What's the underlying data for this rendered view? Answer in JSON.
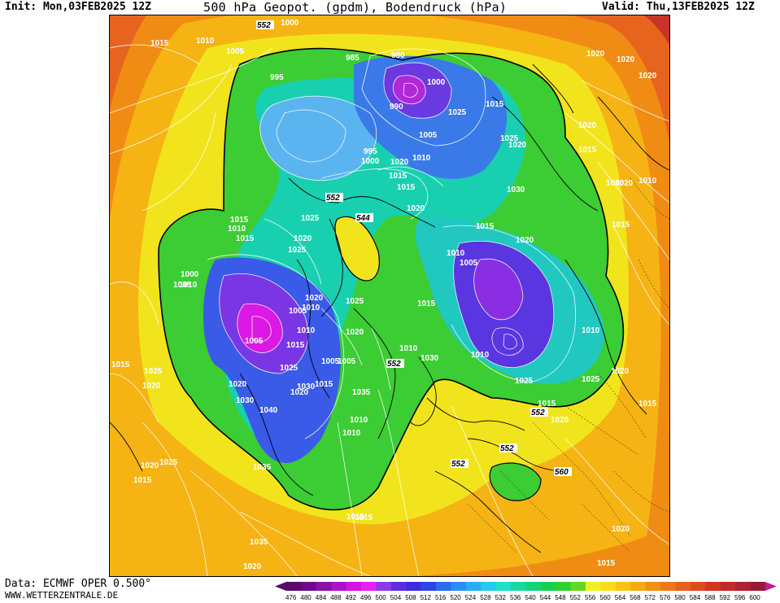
{
  "header": {
    "init": "Init: Mon,03FEB2025 12Z",
    "title": "500 hPa Geopot. (gpdm), Bodendruck (hPa)",
    "valid": "Valid: Thu,13FEB2025 12Z"
  },
  "footer": {
    "data_source": "Data: ECMWF OPER 0.500°",
    "website": "WWW.WETTERZENTRALE.DE"
  },
  "legend": {
    "values": [
      "476",
      "480",
      "484",
      "488",
      "492",
      "496",
      "500",
      "504",
      "508",
      "512",
      "516",
      "520",
      "524",
      "528",
      "532",
      "536",
      "540",
      "544",
      "548",
      "552",
      "556",
      "560",
      "564",
      "568",
      "572",
      "576",
      "580",
      "584",
      "588",
      "592",
      "596",
      "600"
    ],
    "colors": [
      "#5a0a68",
      "#6e0a8a",
      "#8a10a8",
      "#b010c8",
      "#d414e0",
      "#e820f0",
      "#8c3ae8",
      "#5a2ee0",
      "#3a2cdc",
      "#2a46e8",
      "#2a6af0",
      "#2a8cf5",
      "#28aef5",
      "#22ccea",
      "#1ce0c8",
      "#18d8a0",
      "#14d27a",
      "#18d050",
      "#30d030",
      "#64d820",
      "#f0f020",
      "#f8dc18",
      "#f8c414",
      "#f5aa12",
      "#f29012",
      "#ee7818",
      "#e8601c",
      "#e04a20",
      "#d43420",
      "#c42828",
      "#b02030",
      "#961c3a"
    ],
    "arrow_left_color": "#5a0a68",
    "arrow_right_color": "#c0208a"
  },
  "map": {
    "isobar_labels": [
      {
        "t": "1015"
      },
      {
        "t": "1010"
      },
      {
        "t": "1005"
      },
      {
        "t": "995"
      },
      {
        "t": "1000"
      },
      {
        "t": "985"
      },
      {
        "t": "980"
      },
      {
        "t": "990"
      },
      {
        "t": "1000"
      },
      {
        "t": "995"
      },
      {
        "t": "1025"
      },
      {
        "t": "1020"
      },
      {
        "t": "1015"
      },
      {
        "t": "1015"
      },
      {
        "t": "1025"
      },
      {
        "t": "1020"
      },
      {
        "t": "1005"
      },
      {
        "t": "1010"
      },
      {
        "t": "1020"
      },
      {
        "t": "1015"
      },
      {
        "t": "1005"
      },
      {
        "t": "1000"
      },
      {
        "t": "1010"
      },
      {
        "t": "1020"
      },
      {
        "t": "1025"
      },
      {
        "t": "1015"
      },
      {
        "t": "1020"
      },
      {
        "t": "1015"
      },
      {
        "t": "1010"
      },
      {
        "t": "1005"
      },
      {
        "t": "1000"
      },
      {
        "t": "1015"
      },
      {
        "t": "1020"
      },
      {
        "t": "1005"
      },
      {
        "t": "1010"
      },
      {
        "t": "1025"
      },
      {
        "t": "1020"
      },
      {
        "t": "1030"
      },
      {
        "t": "1015"
      },
      {
        "t": "1020"
      },
      {
        "t": "1010"
      },
      {
        "t": "1005"
      },
      {
        "t": "1015"
      },
      {
        "t": "1010"
      },
      {
        "t": "1010"
      },
      {
        "t": "1030"
      },
      {
        "t": "1025"
      },
      {
        "t": "1010"
      },
      {
        "t": "1020"
      },
      {
        "t": "1015"
      },
      {
        "t": "1025"
      },
      {
        "t": "1020"
      },
      {
        "t": "1015"
      },
      {
        "t": "1035"
      },
      {
        "t": "1030"
      },
      {
        "t": "1015"
      },
      {
        "t": "1020"
      },
      {
        "t": "1025"
      },
      {
        "t": "1040"
      },
      {
        "t": "1035"
      },
      {
        "t": "1015"
      },
      {
        "t": "1005"
      },
      {
        "t": "1010"
      },
      {
        "t": "1030"
      },
      {
        "t": "1015"
      },
      {
        "t": "1010"
      },
      {
        "t": "1020"
      },
      {
        "t": "1025"
      },
      {
        "t": "1010"
      },
      {
        "t": "1005"
      },
      {
        "t": "1020"
      },
      {
        "t": "1025"
      },
      {
        "t": "1035"
      },
      {
        "t": "1015"
      },
      {
        "t": "1020"
      },
      {
        "t": "1020"
      },
      {
        "t": "1020"
      },
      {
        "t": "1015"
      },
      {
        "t": "1020"
      },
      {
        "t": "1015"
      },
      {
        "t": "1025"
      },
      {
        "t": "1020"
      },
      {
        "t": "1015"
      },
      {
        "t": "1020"
      },
      {
        "t": "1015"
      },
      {
        "t": "1020"
      },
      {
        "t": "1000"
      },
      {
        "t": "1010"
      }
    ],
    "geopot_labels": [
      {
        "t": "552"
      },
      {
        "t": "552"
      },
      {
        "t": "552"
      },
      {
        "t": "544"
      },
      {
        "t": "552"
      },
      {
        "t": "552"
      },
      {
        "t": "552"
      },
      {
        "t": "552"
      },
      {
        "t": "560"
      }
    ]
  }
}
